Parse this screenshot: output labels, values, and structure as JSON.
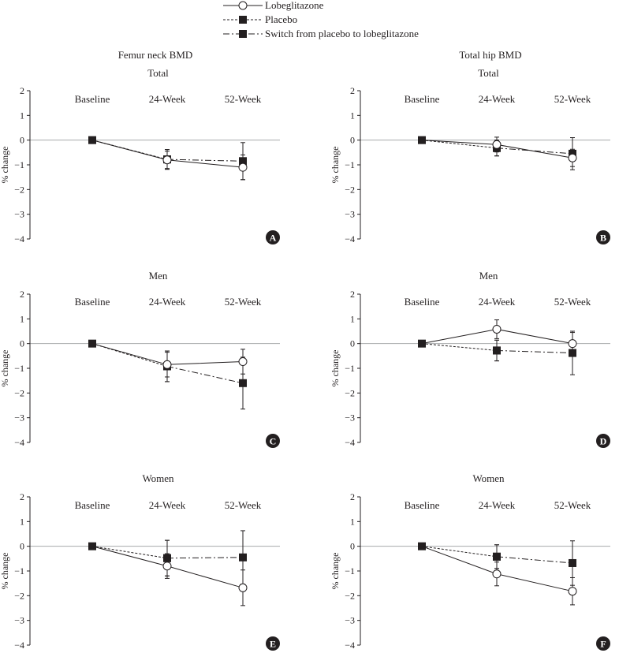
{
  "legend": {
    "items": [
      {
        "label": "Lobeglitazone",
        "series": "lobeglitazone"
      },
      {
        "label": "Placebo",
        "series": "placebo"
      },
      {
        "label": "Switch from placebo to lobeglitazone",
        "series": "switch"
      }
    ]
  },
  "columns": [
    {
      "title": "Femur neck BMD"
    },
    {
      "title": "Total hip BMD"
    }
  ],
  "chart_data": [
    {
      "panel": "A",
      "type": "line",
      "title": "Total",
      "ylabel": "% change",
      "ylim": [
        -4,
        2
      ],
      "yticks": [
        2,
        1,
        0,
        -1,
        -2,
        -3,
        -4
      ],
      "categories": [
        "Baseline",
        "24-Week",
        "52-Week"
      ],
      "series": [
        {
          "name": "Lobeglitazone",
          "values": [
            0,
            -0.8,
            -1.1
          ],
          "err": [
            0,
            0.35,
            0.5
          ]
        },
        {
          "name": "Placebo",
          "values": [
            0,
            -0.78,
            null
          ],
          "err": [
            0,
            0.4,
            null
          ]
        },
        {
          "name": "Switch from placebo to lobeglitazone",
          "values": [
            null,
            -0.78,
            -0.85
          ],
          "err": [
            null,
            0.4,
            0.75
          ]
        }
      ]
    },
    {
      "panel": "B",
      "type": "line",
      "title": "Total",
      "ylabel": "% change",
      "ylim": [
        -4,
        2
      ],
      "yticks": [
        2,
        1,
        0,
        -1,
        -2,
        -3,
        -4
      ],
      "categories": [
        "Baseline",
        "24-Week",
        "52-Week"
      ],
      "series": [
        {
          "name": "Lobeglitazone",
          "values": [
            0,
            -0.18,
            -0.72
          ],
          "err": [
            0,
            0.3,
            0.35
          ]
        },
        {
          "name": "Placebo",
          "values": [
            0,
            -0.32,
            null
          ],
          "err": [
            0,
            0.32,
            null
          ]
        },
        {
          "name": "Switch from placebo to lobeglitazone",
          "values": [
            null,
            -0.32,
            -0.55
          ],
          "err": [
            null,
            0.32,
            0.65
          ]
        }
      ]
    },
    {
      "panel": "C",
      "type": "line",
      "title": "Men",
      "ylabel": "% change",
      "ylim": [
        -4,
        2
      ],
      "yticks": [
        2,
        1,
        0,
        -1,
        -2,
        -3,
        -4
      ],
      "categories": [
        "Baseline",
        "24-Week",
        "52-Week"
      ],
      "series": [
        {
          "name": "Lobeglitazone",
          "values": [
            0,
            -0.85,
            -0.73
          ],
          "err": [
            0,
            0.5,
            0.5
          ]
        },
        {
          "name": "Placebo",
          "values": [
            0,
            -0.92,
            null
          ],
          "err": [
            0,
            0.62,
            null
          ]
        },
        {
          "name": "Switch from placebo to lobeglitazone",
          "values": [
            null,
            -0.92,
            -1.6
          ],
          "err": [
            null,
            0.62,
            1.05
          ]
        }
      ]
    },
    {
      "panel": "D",
      "type": "line",
      "title": "Men",
      "ylabel": "% change",
      "ylim": [
        -4,
        2
      ],
      "yticks": [
        2,
        1,
        0,
        -1,
        -2,
        -3,
        -4
      ],
      "categories": [
        "Baseline",
        "24-Week",
        "52-Week"
      ],
      "series": [
        {
          "name": "Lobeglitazone",
          "values": [
            0,
            0.58,
            0.0
          ],
          "err": [
            0,
            0.38,
            0.45
          ]
        },
        {
          "name": "Placebo",
          "values": [
            0,
            -0.28,
            null
          ],
          "err": [
            0,
            0.42,
            null
          ]
        },
        {
          "name": "Switch from placebo to lobeglitazone",
          "values": [
            null,
            -0.28,
            -0.38
          ],
          "err": [
            null,
            0.42,
            0.88
          ]
        }
      ]
    },
    {
      "panel": "E",
      "type": "line",
      "title": "Women",
      "ylabel": "% change",
      "ylim": [
        -4,
        2
      ],
      "yticks": [
        2,
        1,
        0,
        -1,
        -2,
        -3,
        -4
      ],
      "categories": [
        "Baseline",
        "24-Week",
        "52-Week"
      ],
      "series": [
        {
          "name": "Lobeglitazone",
          "values": [
            0,
            -0.8,
            -1.68
          ],
          "err": [
            0,
            0.5,
            0.72
          ]
        },
        {
          "name": "Placebo",
          "values": [
            0,
            -0.48,
            null
          ],
          "err": [
            0,
            0.72,
            null
          ]
        },
        {
          "name": "Switch from placebo to lobeglitazone",
          "values": [
            null,
            -0.48,
            -0.45
          ],
          "err": [
            null,
            0.72,
            1.08
          ]
        }
      ]
    },
    {
      "panel": "F",
      "type": "line",
      "title": "Women",
      "ylabel": "% change",
      "ylim": [
        -4,
        2
      ],
      "yticks": [
        2,
        1,
        0,
        -1,
        -2,
        -3,
        -4
      ],
      "categories": [
        "Baseline",
        "24-Week",
        "52-Week"
      ],
      "series": [
        {
          "name": "Lobeglitazone",
          "values": [
            0,
            -1.12,
            -1.82
          ],
          "err": [
            0,
            0.48,
            0.55
          ]
        },
        {
          "name": "Placebo",
          "values": [
            0,
            -0.42,
            null
          ],
          "err": [
            0,
            0.48,
            null
          ]
        },
        {
          "name": "Switch from placebo to lobeglitazone",
          "values": [
            null,
            -0.42,
            -0.68
          ],
          "err": [
            null,
            0.48,
            0.9
          ]
        }
      ]
    }
  ]
}
